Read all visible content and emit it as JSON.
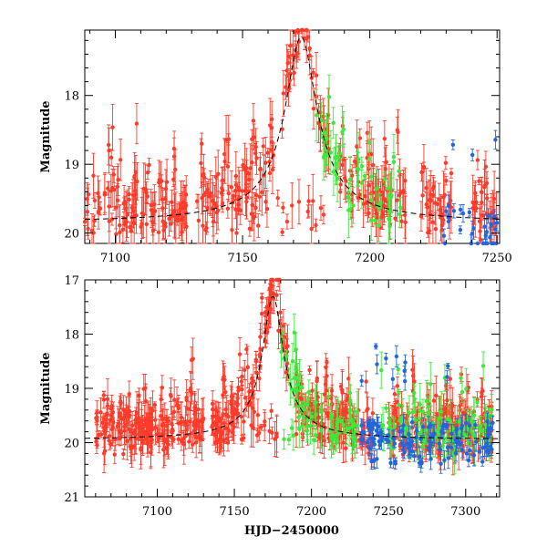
{
  "chart_data": [
    {
      "type": "scatter",
      "panel": "top",
      "title": "",
      "xlabel": "",
      "ylabel": "Magnitude",
      "xlim": [
        7088,
        7251
      ],
      "ylim": [
        20.15,
        17.05
      ],
      "y_inverted": true,
      "xticks": [
        7100,
        7150,
        7200,
        7250
      ],
      "yticks": [
        18,
        19,
        20
      ],
      "series_colors": {
        "red": "#ff3b2a",
        "green": "#3bea3b",
        "blue": "#2266dd"
      },
      "series": [
        {
          "name": "red",
          "color": "#ff3b2a",
          "segments": [
            [
              7088,
              7128
            ],
            [
              7132,
              7172
            ],
            [
              7172,
              7184
            ],
            [
              7188,
              7214
            ],
            [
              7220,
              7232
            ],
            [
              7240,
              7250
            ]
          ]
        },
        {
          "name": "green",
          "color": "#3bea3b",
          "segments": [
            [
              7178,
              7213
            ]
          ]
        },
        {
          "name": "blue",
          "color": "#2266dd",
          "segments": [
            [
              7229,
              7250
            ]
          ]
        }
      ],
      "model": {
        "baseline": 19.85,
        "peak": 17.15,
        "t0": 7173,
        "width": 12
      },
      "seed": 11
    },
    {
      "type": "scatter",
      "panel": "bottom",
      "title": "",
      "xlabel": "HJD−2450000",
      "ylabel": "Magnitude",
      "xlim": [
        7053,
        7322
      ],
      "ylim": [
        21.0,
        17.0
      ],
      "y_inverted": true,
      "xticks": [
        7100,
        7150,
        7200,
        7250,
        7300
      ],
      "yticks": [
        17,
        18,
        19,
        20,
        21
      ],
      "series": [
        {
          "name": "red",
          "color": "#ff3b2a",
          "segments": [
            [
              7060,
              7130
            ],
            [
              7135,
              7185
            ],
            [
              7190,
              7240
            ],
            [
              7250,
              7318
            ]
          ]
        },
        {
          "name": "green",
          "color": "#3bea3b",
          "segments": [
            [
              7180,
              7230
            ],
            [
              7245,
              7318
            ]
          ]
        },
        {
          "name": "blue",
          "color": "#2266dd",
          "segments": [
            [
              7232,
              7318
            ]
          ]
        }
      ],
      "model": {
        "baseline": 19.95,
        "peak": 17.3,
        "t0": 7175,
        "width": 13
      },
      "seed": 23
    }
  ]
}
